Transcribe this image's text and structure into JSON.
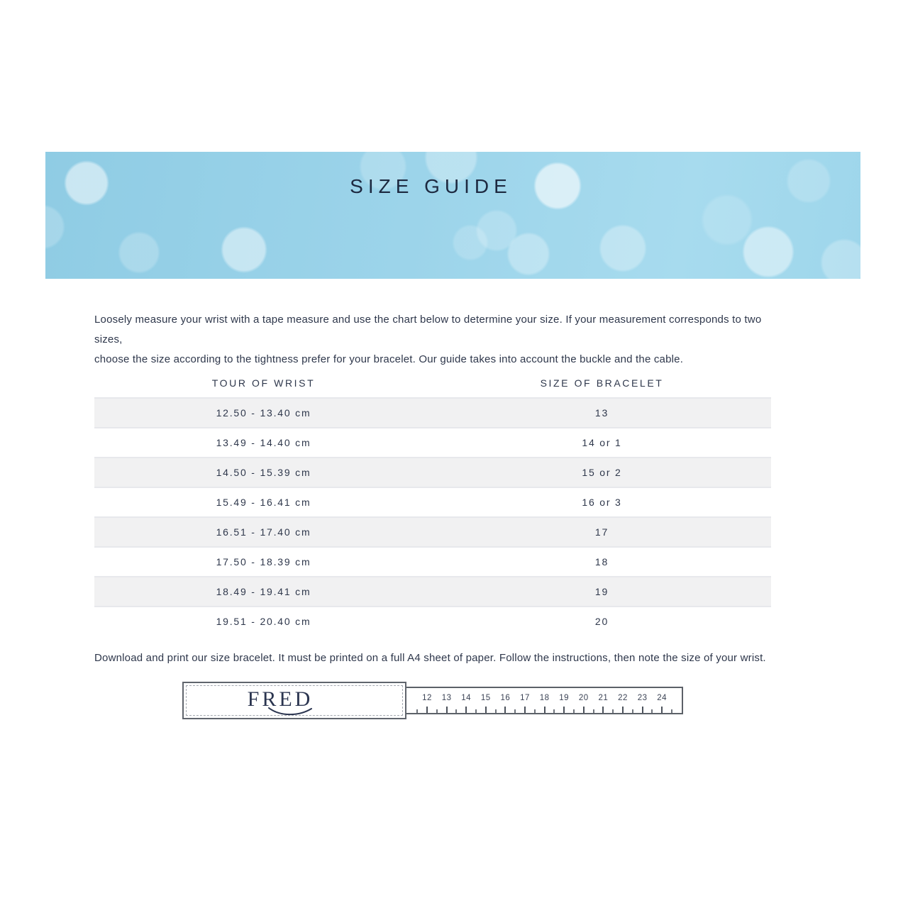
{
  "banner": {
    "title": "SIZE GUIDE"
  },
  "intro": {
    "line1": "Loosely measure your wrist with a tape measure and use the chart below to determine your size. If your measurement corresponds to two sizes,",
    "line2": "choose the size according to the tightness prefer for your bracelet. Our guide takes into account the buckle and the cable."
  },
  "table": {
    "columns": [
      "TOUR OF WRIST",
      "SIZE OF BRACELET"
    ],
    "rows": [
      {
        "tour_of_wrist": "12.50 - 13.40 cm",
        "size_of_bracelet": "13"
      },
      {
        "tour_of_wrist": "13.49 - 14.40 cm",
        "size_of_bracelet": "14 or 1"
      },
      {
        "tour_of_wrist": "14.50 - 15.39 cm",
        "size_of_bracelet": "15 or 2"
      },
      {
        "tour_of_wrist": "15.49 - 16.41 cm",
        "size_of_bracelet": "16 or 3"
      },
      {
        "tour_of_wrist": "16.51 - 17.40 cm",
        "size_of_bracelet": "17"
      },
      {
        "tour_of_wrist": "17.50 - 18.39 cm",
        "size_of_bracelet": "18"
      },
      {
        "tour_of_wrist": "18.49 - 19.41 cm",
        "size_of_bracelet": "19"
      },
      {
        "tour_of_wrist": "19.51 - 20.40 cm",
        "size_of_bracelet": "20"
      }
    ]
  },
  "download_note": "Download and print our size bracelet. It must be printed on a full A4 sheet of paper. Follow the instructions, then note the size of your wrist.",
  "ruler": {
    "brand": "FRED",
    "numbers": [
      "12",
      "13",
      "14",
      "15",
      "16",
      "17",
      "18",
      "19",
      "20",
      "21",
      "22",
      "23",
      "24"
    ]
  },
  "colors": {
    "banner_blue": "#9cd4ea",
    "title_navy": "#1d2940",
    "body_text": "#2e374b",
    "row_alt_bg": "#f1f1f2",
    "ruler_border": "#5c6168"
  }
}
